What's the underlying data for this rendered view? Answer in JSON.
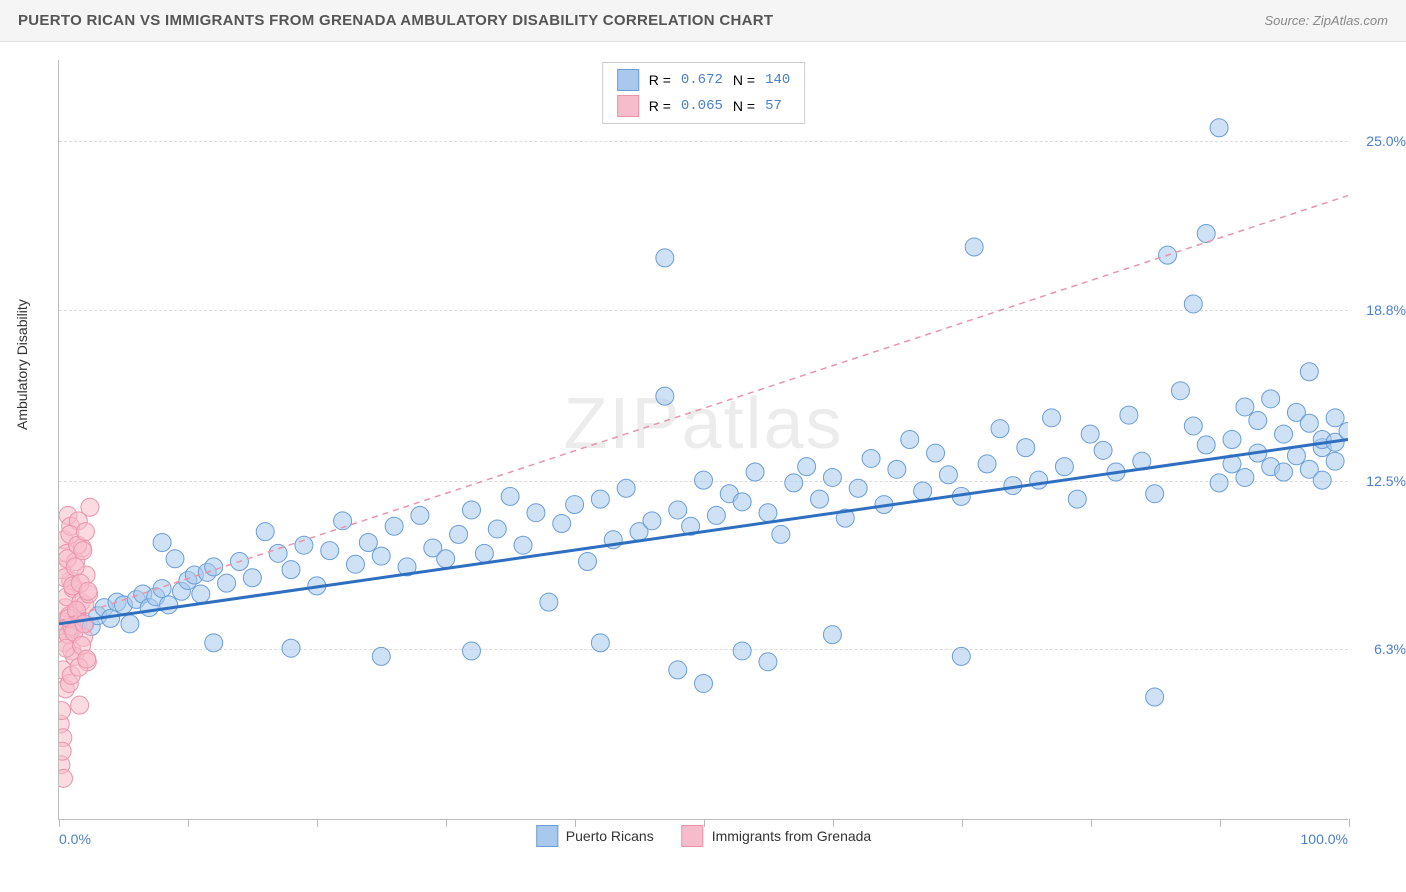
{
  "header": {
    "title": "PUERTO RICAN VS IMMIGRANTS FROM GRENADA AMBULATORY DISABILITY CORRELATION CHART",
    "source_prefix": "Source: ",
    "source": "ZipAtlas.com"
  },
  "chart": {
    "type": "scatter-correlation",
    "y_axis_label": "Ambulatory Disability",
    "watermark": "ZIPatlas",
    "background_color": "#ffffff",
    "grid_color": "#dddddd",
    "axis_color": "#bbbbbb",
    "xlim": [
      0,
      100
    ],
    "ylim": [
      0,
      28
    ],
    "x_tick_positions": [
      0,
      10,
      20,
      30,
      40,
      50,
      60,
      70,
      80,
      90,
      100
    ],
    "x_label_min": "0.0%",
    "x_label_max": "100.0%",
    "y_grid": [
      {
        "value": 6.3,
        "label": "6.3%"
      },
      {
        "value": 12.5,
        "label": "12.5%"
      },
      {
        "value": 18.8,
        "label": "18.8%"
      },
      {
        "value": 25.0,
        "label": "25.0%"
      }
    ],
    "marker_radius": 9,
    "marker_opacity": 0.55,
    "series": [
      {
        "name": "Puerto Ricans",
        "color_fill": "#a8c8ec",
        "color_stroke": "#6a9ed8",
        "R": "0.672",
        "N": "140",
        "trend": {
          "x1": 0,
          "y1": 7.2,
          "x2": 100,
          "y2": 14.0,
          "stroke": "#2f6fc0",
          "width": 3,
          "dash": "none"
        },
        "points": [
          [
            1,
            7.0
          ],
          [
            1.5,
            7.3
          ],
          [
            2,
            7.2
          ],
          [
            2.5,
            7.1
          ],
          [
            3,
            7.5
          ],
          [
            3.5,
            7.8
          ],
          [
            4,
            7.4
          ],
          [
            4.5,
            8.0
          ],
          [
            5,
            7.9
          ],
          [
            5.5,
            7.2
          ],
          [
            6,
            8.1
          ],
          [
            6.5,
            8.3
          ],
          [
            7,
            7.8
          ],
          [
            7.5,
            8.2
          ],
          [
            8,
            8.5
          ],
          [
            8.5,
            7.9
          ],
          [
            9,
            9.6
          ],
          [
            9.5,
            8.4
          ],
          [
            10,
            8.8
          ],
          [
            10.5,
            9.0
          ],
          [
            11,
            8.3
          ],
          [
            11.5,
            9.1
          ],
          [
            12,
            9.3
          ],
          [
            13,
            8.7
          ],
          [
            14,
            9.5
          ],
          [
            15,
            8.9
          ],
          [
            16,
            10.6
          ],
          [
            17,
            9.8
          ],
          [
            18,
            9.2
          ],
          [
            19,
            10.1
          ],
          [
            20,
            8.6
          ],
          [
            21,
            9.9
          ],
          [
            22,
            11.0
          ],
          [
            23,
            9.4
          ],
          [
            24,
            10.2
          ],
          [
            25,
            9.7
          ],
          [
            26,
            10.8
          ],
          [
            27,
            9.3
          ],
          [
            28,
            11.2
          ],
          [
            29,
            10.0
          ],
          [
            30,
            9.6
          ],
          [
            31,
            10.5
          ],
          [
            32,
            11.4
          ],
          [
            33,
            9.8
          ],
          [
            34,
            10.7
          ],
          [
            35,
            11.9
          ],
          [
            36,
            10.1
          ],
          [
            37,
            11.3
          ],
          [
            38,
            8.0
          ],
          [
            39,
            10.9
          ],
          [
            40,
            11.6
          ],
          [
            41,
            9.5
          ],
          [
            42,
            11.8
          ],
          [
            43,
            10.3
          ],
          [
            44,
            12.2
          ],
          [
            45,
            10.6
          ],
          [
            46,
            11.0
          ],
          [
            47,
            20.7
          ],
          [
            47,
            15.6
          ],
          [
            48,
            11.4
          ],
          [
            49,
            10.8
          ],
          [
            50,
            12.5
          ],
          [
            50,
            5.0
          ],
          [
            51,
            11.2
          ],
          [
            52,
            12.0
          ],
          [
            53,
            11.7
          ],
          [
            53,
            6.2
          ],
          [
            54,
            12.8
          ],
          [
            55,
            11.3
          ],
          [
            56,
            10.5
          ],
          [
            57,
            12.4
          ],
          [
            58,
            13.0
          ],
          [
            59,
            11.8
          ],
          [
            60,
            12.6
          ],
          [
            61,
            11.1
          ],
          [
            62,
            12.2
          ],
          [
            63,
            13.3
          ],
          [
            64,
            11.6
          ],
          [
            65,
            12.9
          ],
          [
            66,
            14.0
          ],
          [
            67,
            12.1
          ],
          [
            68,
            13.5
          ],
          [
            69,
            12.7
          ],
          [
            70,
            11.9
          ],
          [
            71,
            21.1
          ],
          [
            72,
            13.1
          ],
          [
            73,
            14.4
          ],
          [
            74,
            12.3
          ],
          [
            75,
            13.7
          ],
          [
            76,
            12.5
          ],
          [
            77,
            14.8
          ],
          [
            78,
            13.0
          ],
          [
            79,
            11.8
          ],
          [
            80,
            14.2
          ],
          [
            81,
            13.6
          ],
          [
            82,
            12.8
          ],
          [
            83,
            14.9
          ],
          [
            84,
            13.2
          ],
          [
            85,
            12.0
          ],
          [
            85,
            4.5
          ],
          [
            86,
            20.8
          ],
          [
            87,
            15.8
          ],
          [
            88,
            14.5
          ],
          [
            88,
            19.0
          ],
          [
            89,
            13.8
          ],
          [
            89,
            21.6
          ],
          [
            90,
            25.5
          ],
          [
            90,
            12.4
          ],
          [
            91,
            14.0
          ],
          [
            91,
            13.1
          ],
          [
            92,
            15.2
          ],
          [
            92,
            12.6
          ],
          [
            93,
            14.7
          ],
          [
            93,
            13.5
          ],
          [
            94,
            13.0
          ],
          [
            94,
            15.5
          ],
          [
            95,
            12.8
          ],
          [
            95,
            14.2
          ],
          [
            96,
            13.4
          ],
          [
            96,
            15.0
          ],
          [
            97,
            14.6
          ],
          [
            97,
            12.9
          ],
          [
            97,
            16.5
          ],
          [
            98,
            13.7
          ],
          [
            98,
            14.0
          ],
          [
            98,
            12.5
          ],
          [
            99,
            13.9
          ],
          [
            99,
            14.8
          ],
          [
            99,
            13.2
          ],
          [
            100,
            14.3
          ],
          [
            42,
            6.5
          ],
          [
            48,
            5.5
          ],
          [
            55,
            5.8
          ],
          [
            60,
            6.8
          ],
          [
            70,
            6.0
          ],
          [
            32,
            6.2
          ],
          [
            25,
            6.0
          ],
          [
            18,
            6.3
          ],
          [
            12,
            6.5
          ],
          [
            8,
            10.2
          ]
        ]
      },
      {
        "name": "Immigrants from Grenada",
        "color_fill": "#f7bccb",
        "color_stroke": "#ea94ab",
        "R": "0.065",
        "N": "57",
        "trend": {
          "x1": 0,
          "y1": 7.3,
          "x2": 100,
          "y2": 23.0,
          "stroke": "#ea94ab",
          "width": 1.5,
          "dash": "6,5"
        },
        "points": [
          [
            0.2,
            7.0
          ],
          [
            0.3,
            7.3
          ],
          [
            0.4,
            6.5
          ],
          [
            0.5,
            7.8
          ],
          [
            0.6,
            8.2
          ],
          [
            0.7,
            6.8
          ],
          [
            0.8,
            7.5
          ],
          [
            0.9,
            8.8
          ],
          [
            1.0,
            6.2
          ],
          [
            0.2,
            9.2
          ],
          [
            0.3,
            5.5
          ],
          [
            0.4,
            10.3
          ],
          [
            0.5,
            4.8
          ],
          [
            0.6,
            9.8
          ],
          [
            0.7,
            11.2
          ],
          [
            0.8,
            5.0
          ],
          [
            0.9,
            10.8
          ],
          [
            1.0,
            7.1
          ],
          [
            1.1,
            8.5
          ],
          [
            1.2,
            6.0
          ],
          [
            1.3,
            9.5
          ],
          [
            1.4,
            7.6
          ],
          [
            1.5,
            11.0
          ],
          [
            1.6,
            4.2
          ],
          [
            1.7,
            8.0
          ],
          [
            1.8,
            10.0
          ],
          [
            1.9,
            6.7
          ],
          [
            2.0,
            7.9
          ],
          [
            2.1,
            9.0
          ],
          [
            2.2,
            5.8
          ],
          [
            2.3,
            8.3
          ],
          [
            2.4,
            11.5
          ],
          [
            0.1,
            3.5
          ],
          [
            0.2,
            4.0
          ],
          [
            0.3,
            3.0
          ],
          [
            0.15,
            2.0
          ],
          [
            0.25,
            2.5
          ],
          [
            0.35,
            1.5
          ],
          [
            0.45,
            8.9
          ],
          [
            0.55,
            6.3
          ],
          [
            0.65,
            9.6
          ],
          [
            0.75,
            7.4
          ],
          [
            0.85,
            10.5
          ],
          [
            0.95,
            5.3
          ],
          [
            1.05,
            8.6
          ],
          [
            1.15,
            6.9
          ],
          [
            1.25,
            9.3
          ],
          [
            1.35,
            7.7
          ],
          [
            1.45,
            10.1
          ],
          [
            1.55,
            5.6
          ],
          [
            1.65,
            8.7
          ],
          [
            1.75,
            6.4
          ],
          [
            1.85,
            9.9
          ],
          [
            1.95,
            7.2
          ],
          [
            2.05,
            10.6
          ],
          [
            2.15,
            5.9
          ],
          [
            2.25,
            8.4
          ]
        ]
      }
    ],
    "legend_top": {
      "R_label": "R =",
      "N_label": "N ="
    },
    "legend_bottom_colors": {
      "blue_fill": "#a8c8ec",
      "blue_stroke": "#6a9ed8",
      "pink_fill": "#f7bccb",
      "pink_stroke": "#ea94ab"
    }
  }
}
